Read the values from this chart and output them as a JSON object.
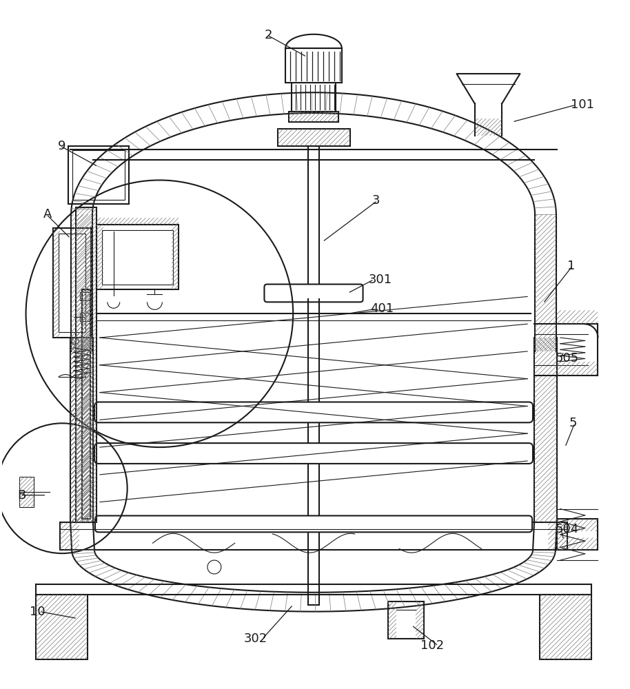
{
  "bg_color": "#ffffff",
  "line_color": "#1a1a1a",
  "hatch_color": "#777777",
  "label_color": "#1a1a1a",
  "label_fontsize": 13,
  "lw_main": 1.5,
  "lw_thin": 0.8,
  "lw_hatch": 0.5,
  "hatch_sp": 7
}
